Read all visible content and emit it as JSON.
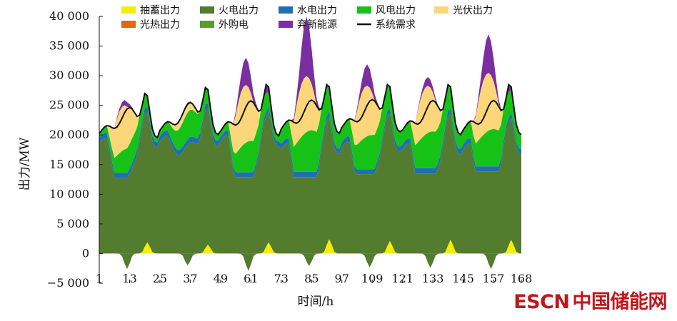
{
  "chart_data": {
    "type": "area",
    "title": "",
    "xlabel": "时间/h",
    "ylabel": "出力/MW",
    "xlim": [
      1,
      168
    ],
    "ylim": [
      -5000,
      40000
    ],
    "x_ticks": [
      1,
      13,
      25,
      37,
      49,
      61,
      73,
      85,
      97,
      109,
      121,
      133,
      145,
      157,
      168
    ],
    "y_ticks": [
      {
        "value": -5000,
        "label": "−5 000"
      },
      {
        "value": 0,
        "label": "0"
      },
      {
        "value": 5000,
        "label": "5 000"
      },
      {
        "value": 10000,
        "label": "10 000"
      },
      {
        "value": 15000,
        "label": "15 000"
      },
      {
        "value": 20000,
        "label": "20 000"
      },
      {
        "value": 25000,
        "label": "25 000"
      },
      {
        "value": 30000,
        "label": "30 000"
      },
      {
        "value": 35000,
        "label": "35 000"
      },
      {
        "value": 40000,
        "label": "40 000"
      }
    ],
    "legend_position": "top",
    "stacked": true,
    "days": [
      {
        "start": 1,
        "demand_trough": 19500,
        "demand_peak": 27000,
        "pumped_pos": 1900,
        "pumped_neg": -2600,
        "thermal_min": 12700,
        "thermal_max": 22600,
        "hydro": 900,
        "wind_low": 700,
        "wind_high": 4200,
        "solar_peak": 7500,
        "curtailed_peak": 900
      },
      {
        "start": 25,
        "demand_trough": 20000,
        "demand_peak": 28000,
        "pumped_pos": 1500,
        "pumped_neg": -2000,
        "thermal_min": 14500,
        "thermal_max": 23800,
        "hydro": 900,
        "wind_low": 1000,
        "wind_high": 4600,
        "solar_peak": 1500,
        "curtailed_peak": 300
      },
      {
        "start": 49,
        "demand_trough": 19800,
        "demand_peak": 28500,
        "pumped_pos": 1900,
        "pumped_neg": -2900,
        "thermal_min": 12900,
        "thermal_max": 22000,
        "hydro": 800,
        "wind_low": 900,
        "wind_high": 5300,
        "solar_peak": 9800,
        "curtailed_peak": 4600
      },
      {
        "start": 73,
        "demand_trough": 20200,
        "demand_peak": 28500,
        "pumped_pos": 2400,
        "pumped_neg": -2100,
        "thermal_min": 12900,
        "thermal_max": 20800,
        "hydro": 900,
        "wind_low": 2500,
        "wind_high": 7000,
        "solar_peak": 9500,
        "curtailed_peak": 10000
      },
      {
        "start": 97,
        "demand_trough": 20500,
        "demand_peak": 28500,
        "pumped_pos": 2100,
        "pumped_neg": -2300,
        "thermal_min": 13400,
        "thermal_max": 22100,
        "hydro": 800,
        "wind_low": 2500,
        "wind_high": 5800,
        "solar_peak": 8600,
        "curtailed_peak": 3600
      },
      {
        "start": 121,
        "demand_trough": 20000,
        "demand_peak": 28500,
        "pumped_pos": 2300,
        "pumped_neg": -2400,
        "thermal_min": 13500,
        "thermal_max": 24800,
        "hydro": 900,
        "wind_low": 2400,
        "wind_high": 6200,
        "solar_peak": 8000,
        "curtailed_peak": 1500
      },
      {
        "start": 145,
        "demand_trough": 20000,
        "demand_peak": 28500,
        "pumped_pos": 2300,
        "pumped_neg": -2600,
        "thermal_min": 13800,
        "thermal_max": 20600,
        "hydro": 900,
        "wind_low": 2400,
        "wind_high": 6300,
        "solar_peak": 9800,
        "curtailed_peak": 6500
      }
    ],
    "series": [
      {
        "name": "抽蓄出力",
        "key": "pumped",
        "color": "#f5ee00"
      },
      {
        "name": "火电出力",
        "key": "thermal",
        "color": "#537c2f"
      },
      {
        "name": "水电出力",
        "key": "hydro",
        "color": "#1f6fb6"
      },
      {
        "name": "风电出力",
        "key": "wind",
        "color": "#17c217"
      },
      {
        "name": "光伏出力",
        "key": "solar",
        "color": "#fcd77a"
      },
      {
        "name": "光热出力",
        "key": "csp",
        "color": "#d86a1a"
      },
      {
        "name": "外购电",
        "key": "import",
        "color": "#5a9b34"
      },
      {
        "name": "弃新能源",
        "key": "curtailed",
        "color": "#7a2fa0"
      },
      {
        "name": "系统需求",
        "key": "demand",
        "color": "#111111"
      }
    ]
  },
  "watermark": {
    "part1": "ESCN",
    "part2": "中国储能网"
  }
}
